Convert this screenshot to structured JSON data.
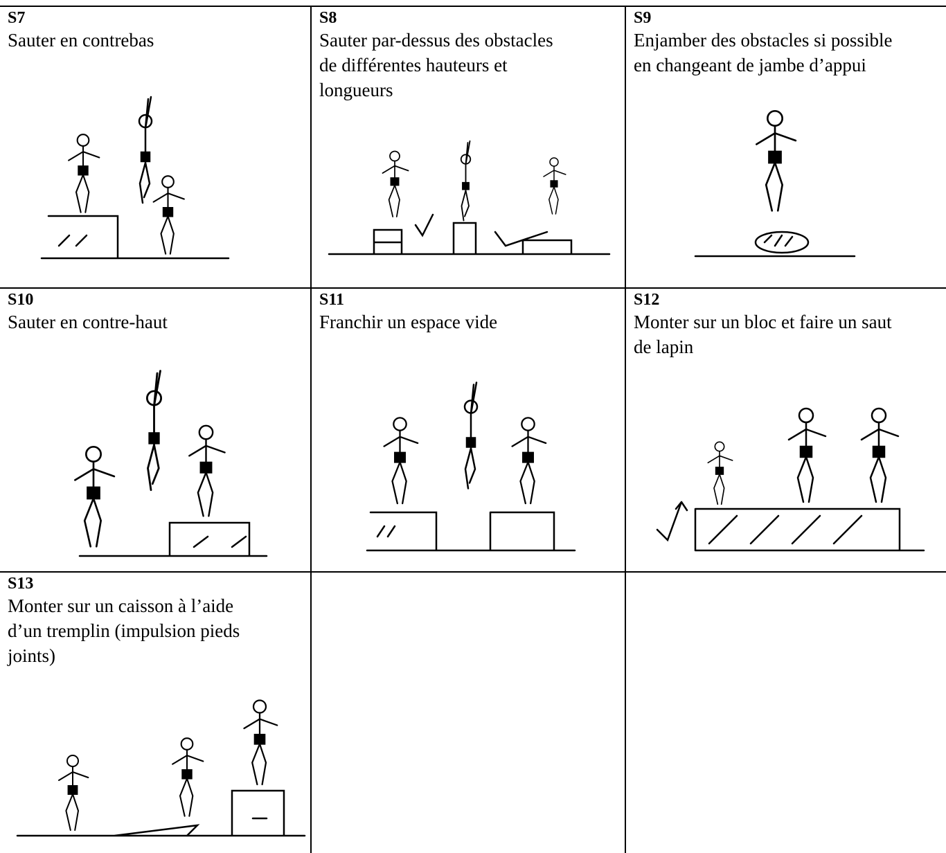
{
  "cells": [
    {
      "code": "S7",
      "lines": [
        "Sauter en contrebas"
      ]
    },
    {
      "code": "S8",
      "lines": [
        "Sauter par-dessus des obstacles",
        "de différentes hauteurs et",
        "longueurs"
      ]
    },
    {
      "code": "S9",
      "lines": [
        "Enjamber des obstacles si possible",
        "en changeant de jambe d’appui"
      ]
    },
    {
      "code": "S10",
      "lines": [
        "Sauter en contre-haut"
      ]
    },
    {
      "code": "S11",
      "lines": [
        "Franchir un espace vide"
      ]
    },
    {
      "code": "S12",
      "lines": [
        "Monter sur un bloc et faire un saut",
        "de lapin"
      ]
    },
    {
      "code": "S13",
      "lines": [
        "Monter sur un caisson à l’aide",
        "d’un tremplin (impulsion pieds",
        "joints)"
      ]
    }
  ]
}
